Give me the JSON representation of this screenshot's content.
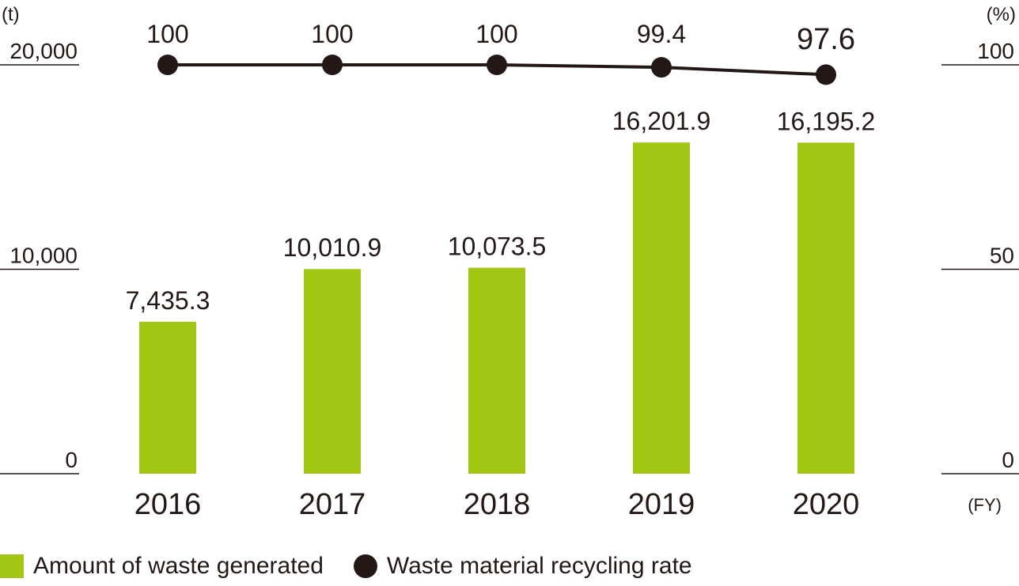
{
  "chart_data": {
    "type": "bar+line",
    "categories": [
      "2016",
      "2017",
      "2018",
      "2019",
      "2020"
    ],
    "x_unit": "(FY)",
    "left_axis": {
      "unit": "(t)",
      "ticks": [
        "0",
        "10,000",
        "20,000"
      ],
      "range": [
        0,
        20000
      ]
    },
    "right_axis": {
      "unit": "(%)",
      "ticks": [
        "0",
        "50",
        "100"
      ],
      "range": [
        0,
        100
      ]
    },
    "series": [
      {
        "name": "Amount of waste generated",
        "kind": "bar",
        "axis": "left",
        "values": [
          7435.3,
          10010.9,
          10073.5,
          16201.9,
          16195.2
        ],
        "labels": [
          "7,435.3",
          "10,010.9",
          "10,073.5",
          "16,201.9",
          "16,195.2"
        ],
        "color": "#a3c614"
      },
      {
        "name": "Waste material recycling rate",
        "kind": "line",
        "axis": "right",
        "values": [
          100,
          100,
          100,
          99.4,
          97.6
        ],
        "labels": [
          "100",
          "100",
          "100",
          "99.4",
          "97.6"
        ],
        "color": "#231815"
      }
    ],
    "legend_position": "bottom-left",
    "grid": false
  }
}
